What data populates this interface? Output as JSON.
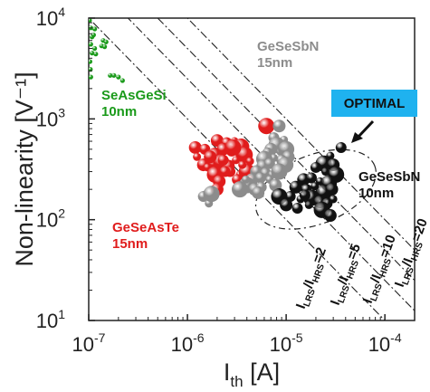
{
  "chart_data": {
    "type": "scatter",
    "xscale": "log",
    "yscale": "log",
    "xlim": [
      1e-07,
      0.0002
    ],
    "ylim": [
      10,
      10000
    ],
    "xlabel": {
      "base": "I",
      "sub": "th",
      "rest": " [A]"
    },
    "ylabel": "Non-linearity [V⁻¹]",
    "xticks": [
      {
        "value": 1e-07,
        "mantissa": "10",
        "exp": "-7"
      },
      {
        "value": 1e-06,
        "mantissa": "10",
        "exp": "-6"
      },
      {
        "value": 1e-05,
        "mantissa": "10",
        "exp": "-5"
      },
      {
        "value": 0.0001,
        "mantissa": "10",
        "exp": "-4"
      }
    ],
    "yticks": [
      {
        "value": 10,
        "mantissa": "10",
        "exp": "1"
      },
      {
        "value": 100,
        "mantissa": "10",
        "exp": "2"
      },
      {
        "value": 1000,
        "mantissa": "10",
        "exp": "3"
      },
      {
        "value": 10000,
        "mantissa": "10",
        "exp": "4"
      }
    ],
    "series": [
      {
        "name": "SeAsGeSi 10nm",
        "color": "#1a9a1a",
        "points": [
          [
            1.02e-07,
            9500
          ],
          [
            1.05e-07,
            8000
          ],
          [
            1.15e-07,
            7800
          ],
          [
            1.08e-07,
            6500
          ],
          [
            1.12e-07,
            6800
          ],
          [
            1.05e-07,
            5500
          ],
          [
            1.15e-07,
            5000
          ],
          [
            1.08e-07,
            4500
          ],
          [
            1.18e-07,
            4400
          ],
          [
            1.4e-07,
            6000
          ],
          [
            1.5e-07,
            5800
          ],
          [
            1.35e-07,
            5300
          ],
          [
            1.45e-07,
            5200
          ],
          [
            1.03e-07,
            3700
          ],
          [
            1.04e-07,
            3100
          ],
          [
            1.05e-07,
            2600
          ],
          [
            1.65e-07,
            2700
          ],
          [
            1.8e-07,
            2700
          ],
          [
            2e-07,
            2600
          ],
          [
            2.2e-07,
            2400
          ]
        ]
      },
      {
        "name": "GeSeAsTe 15nm",
        "color": "#e01c1c",
        "points": [
          [
            6.3e-06,
            850
          ],
          [
            1.2e-06,
            520
          ],
          [
            1.5e-06,
            500
          ],
          [
            1.25e-06,
            420
          ],
          [
            1.9e-06,
            430
          ],
          [
            2e-06,
            610
          ],
          [
            2.5e-06,
            580
          ],
          [
            3e-06,
            600
          ],
          [
            3.5e-06,
            530
          ],
          [
            2.3e-06,
            500
          ],
          [
            2.8e-06,
            480
          ],
          [
            3.3e-06,
            460
          ],
          [
            3.8e-06,
            440
          ],
          [
            1.45e-06,
            350
          ],
          [
            1.85e-06,
            360
          ],
          [
            1.6e-06,
            330
          ],
          [
            2.2e-06,
            370
          ],
          [
            2.6e-06,
            340
          ],
          [
            2.3e-06,
            390
          ],
          [
            3.1e-06,
            390
          ],
          [
            1.9e-06,
            280
          ],
          [
            2.1e-06,
            240
          ],
          [
            2.7e-06,
            300
          ],
          [
            3.4e-06,
            280
          ],
          [
            4e-06,
            300
          ],
          [
            1.7e-06,
            420
          ],
          [
            2.4e-06,
            300
          ],
          [
            3.6e-06,
            350
          ],
          [
            2.9e-06,
            520
          ],
          [
            2e-06,
            200
          ],
          [
            3.2e-06,
            250
          ],
          [
            4.3e-06,
            380
          ]
        ]
      },
      {
        "name": "GeSeSbN 15nm",
        "color": "#8c8c8c",
        "points": [
          [
            8.5e-06,
            850
          ],
          [
            7.5e-06,
            650
          ],
          [
            9.5e-06,
            620
          ],
          [
            8e-06,
            550
          ],
          [
            7e-06,
            500
          ],
          [
            6.5e-06,
            460
          ],
          [
            8.8e-06,
            470
          ],
          [
            1e-05,
            500
          ],
          [
            1.05e-05,
            420
          ],
          [
            9e-06,
            390
          ],
          [
            7.5e-06,
            410
          ],
          [
            6e-06,
            400
          ],
          [
            5.8e-06,
            340
          ],
          [
            6.8e-06,
            360
          ],
          [
            8.2e-06,
            330
          ],
          [
            9.8e-06,
            350
          ],
          [
            5e-06,
            300
          ],
          [
            6.2e-06,
            290
          ],
          [
            7.2e-06,
            280
          ],
          [
            8.5e-06,
            300
          ],
          [
            4.5e-06,
            250
          ],
          [
            5.5e-06,
            260
          ],
          [
            6.8e-06,
            250
          ],
          [
            4e-06,
            220
          ],
          [
            4.8e-06,
            200
          ],
          [
            5.6e-06,
            210
          ],
          [
            3.9e-06,
            250
          ],
          [
            3.4e-06,
            200
          ],
          [
            5.2e-06,
            185
          ],
          [
            1.45e-06,
            170
          ],
          [
            1.65e-06,
            145
          ],
          [
            1.75e-06,
            180
          ],
          [
            7.8e-06,
            220
          ]
        ]
      },
      {
        "name": "GeSeSbN 10nm",
        "color": "#111111",
        "points": [
          [
            3.6e-05,
            520
          ],
          [
            2.8e-05,
            430
          ],
          [
            2.4e-05,
            360
          ],
          [
            3e-05,
            350
          ],
          [
            2e-05,
            330
          ],
          [
            2.5e-05,
            300
          ],
          [
            3.2e-05,
            280
          ],
          [
            1.5e-05,
            250
          ],
          [
            1.8e-05,
            260
          ],
          [
            2.2e-05,
            240
          ],
          [
            2.7e-05,
            230
          ],
          [
            1.25e-05,
            210
          ],
          [
            1.6e-05,
            200
          ],
          [
            2e-05,
            190
          ],
          [
            2.4e-05,
            185
          ],
          [
            2.9e-05,
            200
          ],
          [
            1.1e-05,
            170
          ],
          [
            1.4e-05,
            160
          ],
          [
            1.8e-05,
            165
          ],
          [
            2.2e-05,
            150
          ],
          [
            2.6e-05,
            145
          ],
          [
            3e-05,
            160
          ],
          [
            8.5e-06,
            170
          ],
          [
            1e-05,
            140
          ],
          [
            1.3e-05,
            130
          ],
          [
            1.7e-05,
            140
          ],
          [
            2.3e-05,
            125
          ],
          [
            2.8e-05,
            110
          ],
          [
            1.55e-05,
            175
          ],
          [
            1.95e-05,
            215
          ]
        ]
      }
    ],
    "ratio_lines": [
      {
        "ratio": "2",
        "anchor": [
          1e-07,
          10000
        ]
      },
      {
        "ratio": "5",
        "anchor": [
          2.5e-07,
          10000
        ]
      },
      {
        "ratio": "10",
        "anchor": [
          5e-07,
          10000
        ]
      },
      {
        "ratio": "20",
        "anchor": [
          1e-06,
          10000
        ]
      }
    ],
    "ratio_label": {
      "I": "I",
      "lrs": "LRS",
      "slash": "/",
      "hrs": "HRS",
      "eq": "="
    },
    "annotations": {
      "seasgesi": [
        "SeAsGeSi",
        "10nm"
      ],
      "gesesbn15": [
        "GeSeSbN",
        "15nm"
      ],
      "geseaste": [
        "GeSeAsTe",
        "15nm"
      ],
      "gesesbn10": [
        "GeSeSbN",
        "10nm"
      ],
      "optimal": "OPTIMAL"
    },
    "colors": {
      "optimal_box": "#1fb2ef",
      "axis": "#222222"
    }
  }
}
